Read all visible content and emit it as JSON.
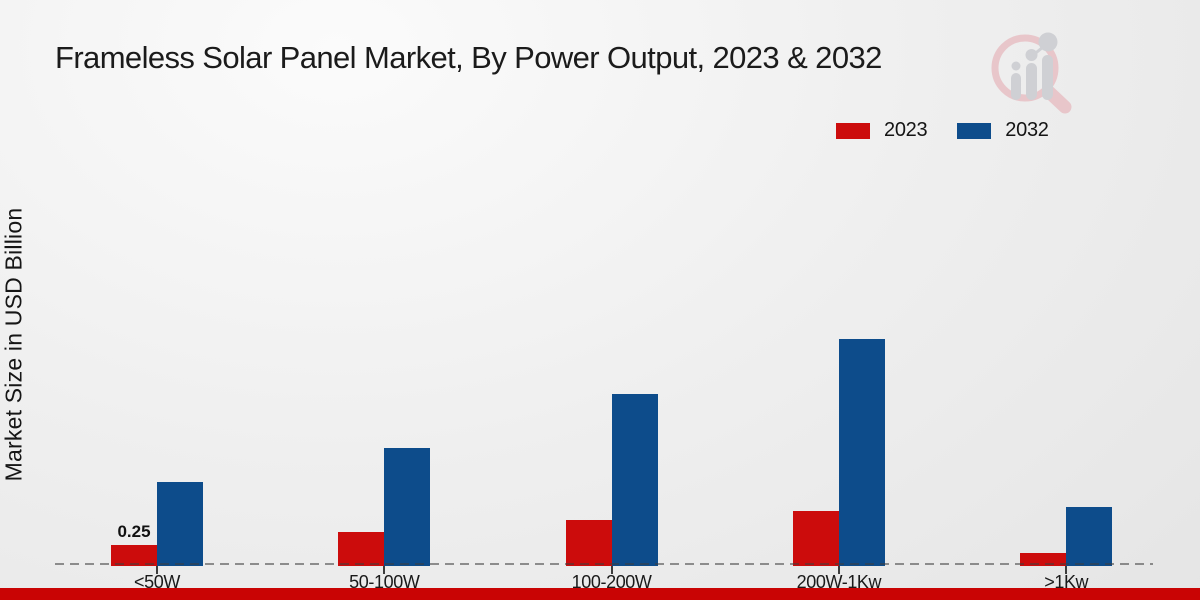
{
  "title": "Frameless Solar Panel Market, By Power Output, 2023 & 2032",
  "y_axis_label": "Market Size in USD Billion",
  "legend": {
    "items": [
      {
        "label": "2023",
        "color": "#cc0c0c"
      },
      {
        "label": "2032",
        "color": "#0d4c8b"
      }
    ]
  },
  "watermark_icon": "magnifier-growth-chart-icon",
  "colors": {
    "red_2023": "#cc0c0c",
    "blue_2032": "#0d4c8b",
    "bottom_strip": "#c90404",
    "baseline_gray": "#8a8a8a",
    "watermark_pink": "#e8c6ca",
    "watermark_gray": "#cfd0d4"
  },
  "chart_data": {
    "type": "bar",
    "title": "Frameless Solar Panel Market, By Power Output, 2023 & 2032",
    "xlabel": "",
    "ylabel": "Market Size in USD Billion",
    "categories": [
      "<50W",
      "50-100W",
      "100-200W",
      "200W-1Kw",
      ">1Kw"
    ],
    "series": [
      {
        "name": "2023",
        "color": "#cc0c0c",
        "values": [
          0.25,
          0.4,
          0.55,
          0.65,
          0.15
        ]
      },
      {
        "name": "2032",
        "color": "#0d4c8b",
        "values": [
          1.0,
          1.4,
          2.05,
          2.7,
          0.7
        ]
      }
    ],
    "data_labels": [
      {
        "series": "2023",
        "category_index": 0,
        "text": "0.25"
      }
    ],
    "ylim": [
      0,
      2.85
    ],
    "grid": false,
    "y_axis_ticks_visible": false,
    "legend_position": "top-right",
    "baseline_style": "dashed"
  }
}
